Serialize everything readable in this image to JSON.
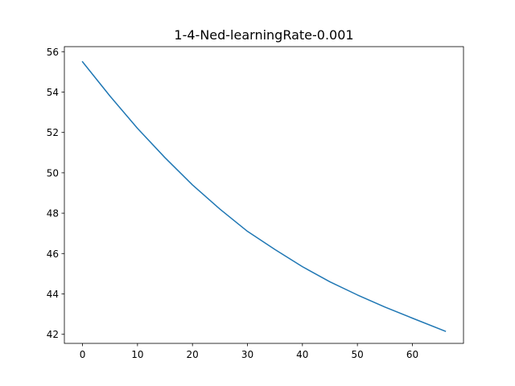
{
  "chart_data": {
    "type": "line",
    "title": "1-4-Ned-learningRate-0.001",
    "xlabel": "",
    "ylabel": "",
    "xlim": [
      -3.3,
      69.3
    ],
    "ylim": [
      41.55,
      56.25
    ],
    "xticks": [
      0,
      10,
      20,
      30,
      40,
      50,
      60
    ],
    "yticks": [
      42,
      44,
      46,
      48,
      50,
      52,
      54,
      56
    ],
    "grid": false,
    "legend": "none",
    "series": [
      {
        "color": "#1f77b4",
        "x": [
          0,
          5,
          10,
          15,
          20,
          25,
          30,
          35,
          40,
          45,
          50,
          55,
          60,
          66
        ],
        "y": [
          55.5,
          53.8,
          52.2,
          50.75,
          49.4,
          48.2,
          47.1,
          46.2,
          45.35,
          44.6,
          43.95,
          43.35,
          42.8,
          42.15
        ]
      }
    ]
  }
}
